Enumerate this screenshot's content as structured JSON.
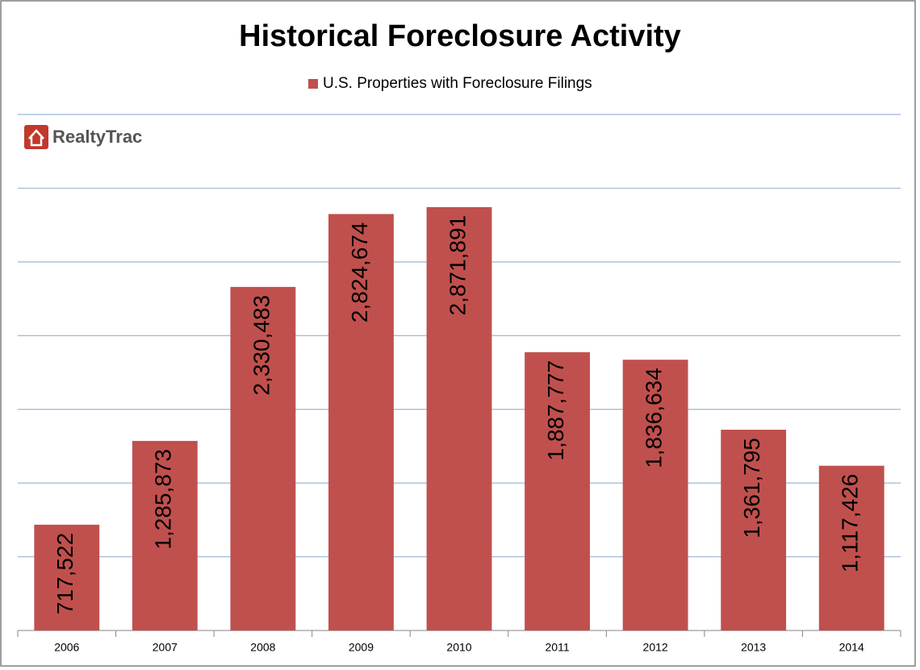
{
  "chart_data": {
    "type": "bar",
    "title": "Historical Foreclosure Activity",
    "logo": "RealtyTrac",
    "categories": [
      "2006",
      "2007",
      "2008",
      "2009",
      "2010",
      "2011",
      "2012",
      "2013",
      "2014"
    ],
    "series": [
      {
        "name": "U.S. Properties with Foreclosure Filings",
        "color": "#c0504d",
        "values": [
          717522,
          1285873,
          2330483,
          2824674,
          2871891,
          1887777,
          1836634,
          1361795,
          1117426
        ],
        "value_labels": [
          "717,522",
          "1,285,873",
          "2,330,483",
          "2,824,674",
          "2,871,891",
          "1,887,777",
          "1,836,634",
          "1,361,795",
          "1,117,426"
        ]
      }
    ],
    "ylim": [
      0,
      3500000
    ],
    "yticks": [
      0,
      500000,
      1000000,
      1500000,
      2000000,
      2500000,
      3000000,
      3500000
    ],
    "ytick_labels": false,
    "grid": true,
    "legend": "top"
  }
}
